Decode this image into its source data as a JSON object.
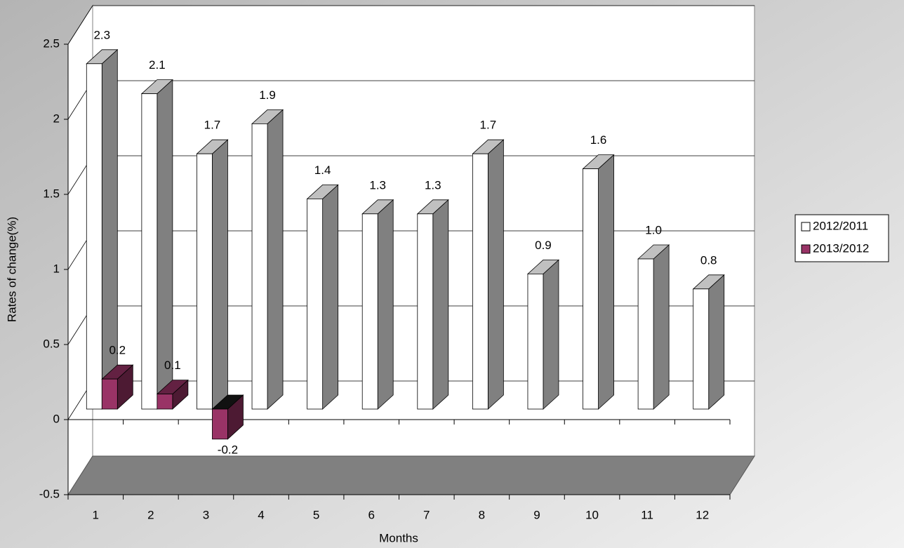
{
  "chart_data": {
    "type": "bar3d",
    "x_label": "Months",
    "y_label": "Rates of change(%)",
    "categories": [
      "1",
      "2",
      "3",
      "4",
      "5",
      "6",
      "7",
      "8",
      "9",
      "10",
      "11",
      "12"
    ],
    "series": [
      {
        "name": "2012/2011",
        "color": "#ffffff",
        "values": [
          2.3,
          2.1,
          1.7,
          1.9,
          1.4,
          1.3,
          1.3,
          1.7,
          0.9,
          1.6,
          1.0,
          0.8
        ],
        "value_labels": [
          "2.3",
          "2.1",
          "1.7",
          "1.9",
          "1.4",
          "1.3",
          "1.3",
          "1.7",
          "0.9",
          "1.6",
          "1.0",
          "0.8"
        ]
      },
      {
        "name": "2013/2012",
        "color": "#993366",
        "values": [
          0.2,
          0.1,
          -0.2,
          null,
          null,
          null,
          null,
          null,
          null,
          null,
          null,
          null
        ],
        "value_labels": [
          "0.2",
          "0.1",
          "-0.2",
          null,
          null,
          null,
          null,
          null,
          null,
          null,
          null,
          null
        ]
      }
    ],
    "ylim": [
      -0.5,
      2.5
    ],
    "yticks": [
      -0.5,
      0,
      0.5,
      1,
      1.5,
      2,
      2.5
    ],
    "grid": true,
    "legend": "right"
  }
}
